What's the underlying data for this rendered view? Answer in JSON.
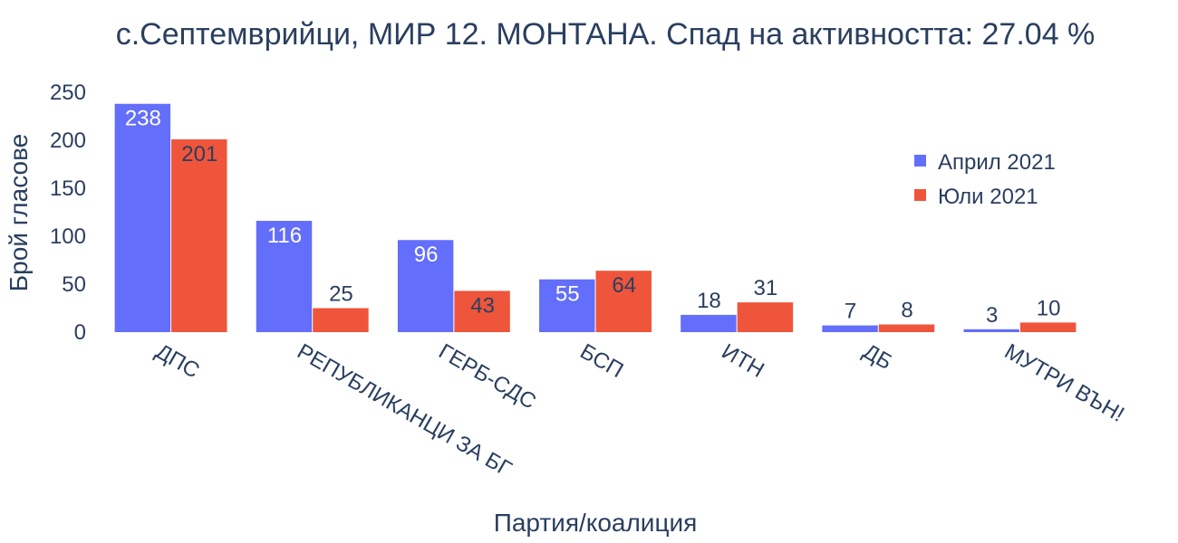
{
  "chart_data": {
    "type": "bar",
    "title": "с.Септемврийци, МИР 12. МОНТАНА. Спад на активността: 27.04 %",
    "xlabel": "Партия/коалиция",
    "ylabel": "Брой гласове",
    "ylim": [
      0,
      250
    ],
    "yticks": [
      0,
      50,
      100,
      150,
      200,
      250
    ],
    "categories": [
      "ДПС",
      "РЕПУБЛИКАНЦИ ЗА БГ",
      "ГЕРБ-СДС",
      "БСП",
      "ИТН",
      "ДБ",
      "МУТРИ ВЪН!"
    ],
    "series": [
      {
        "name": "Април 2021",
        "color": "#636efa",
        "values": [
          238,
          116,
          96,
          55,
          18,
          7,
          3
        ]
      },
      {
        "name": "Юли 2021",
        "color": "#ef553b",
        "values": [
          201,
          25,
          43,
          64,
          31,
          8,
          10
        ]
      }
    ],
    "legend_position": "top-right",
    "grid": false
  }
}
